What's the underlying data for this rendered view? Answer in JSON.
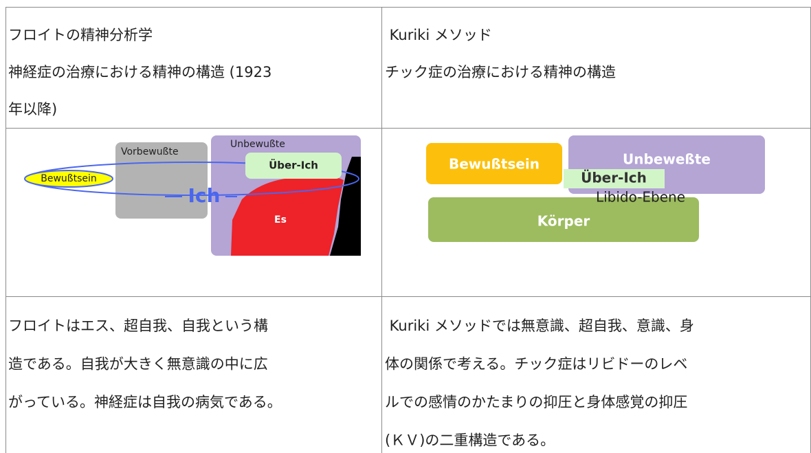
{
  "header": {
    "left": [
      "フロイトの精神分析学",
      "神経症の治療における精神の構造 (1923",
      "年以降)"
    ],
    "right": [
      " Kuriki メソッド",
      "チック症の治療における精神の構造"
    ]
  },
  "figures": {
    "freud": {
      "vorbewusste": "Vorbewußte",
      "unbewusste": "Unbewußte",
      "ueber_ich": "Über-Ich",
      "bewusstsein": "Bewußtsein",
      "ich": "Ich",
      "es": "Es"
    },
    "kuriki": {
      "bewusstsein": "Bewußtsein",
      "unbewusste": "Unbeweßte",
      "ueber_ich": "Über-Ich",
      "libido": "Libido-Ebene",
      "koerper": "Körper"
    }
  },
  "body": {
    "left": [
      "フロイトはエス、超自我、自我という構",
      "造である。自我が大きく無意識の中に広",
      "がっている。神経症は自我の病気である。"
    ],
    "right": [
      " Kuriki メソッドでは無意識、超自我、意識、身",
      "体の関係で考える。チック症はリビドーのレベ",
      "ルでの感情のかたまりの抑圧と身体感覚の抑圧",
      "(ＫＶ)の二重構造である。"
    ]
  }
}
